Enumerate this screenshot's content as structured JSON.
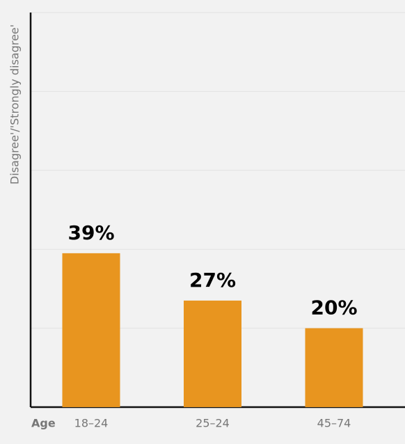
{
  "chart_data": {
    "type": "bar",
    "y_axis_label": "Disagree'/'Strongly disagree'",
    "x_axis_label": "Age",
    "categories": [
      "18–24",
      "25–24",
      "45–74"
    ],
    "values": [
      39,
      27,
      20
    ],
    "value_labels": [
      "39%",
      "27%",
      "20%"
    ],
    "color": "#e8951f",
    "ylim": [
      0,
      100
    ],
    "yticks": [
      0,
      20,
      40,
      60,
      80,
      100
    ],
    "grid": true
  }
}
